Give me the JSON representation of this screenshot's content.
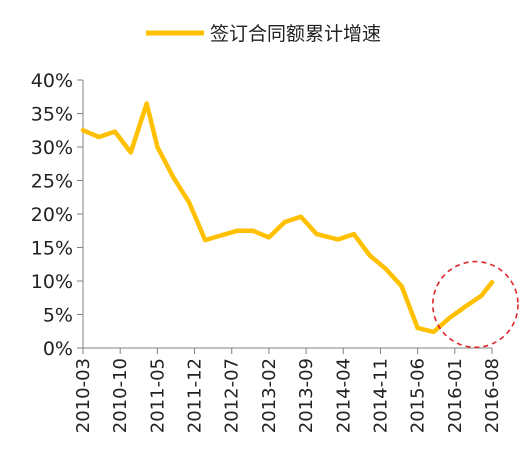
{
  "chart_data": {
    "type": "line",
    "legend": {
      "position": "top-center",
      "entries": [
        "签订合同额累计增速"
      ]
    },
    "series": [
      {
        "name": "签订合同额累计增速",
        "color": "#FFC000",
        "points": [
          {
            "x": "2010-03",
            "y": 32.5
          },
          {
            "x": "2010-06",
            "y": 31.5
          },
          {
            "x": "2010-09",
            "y": 32.3
          },
          {
            "x": "2010-12",
            "y": 29.2
          },
          {
            "x": "2011-03",
            "y": 36.5
          },
          {
            "x": "2011-05",
            "y": 30.0
          },
          {
            "x": "2011-08",
            "y": 25.5
          },
          {
            "x": "2011-11",
            "y": 21.7
          },
          {
            "x": "2012-02",
            "y": 16.1
          },
          {
            "x": "2012-05",
            "y": 16.8
          },
          {
            "x": "2012-08",
            "y": 17.5
          },
          {
            "x": "2012-11",
            "y": 17.5
          },
          {
            "x": "2013-02",
            "y": 16.5
          },
          {
            "x": "2013-05",
            "y": 18.8
          },
          {
            "x": "2013-08",
            "y": 19.6
          },
          {
            "x": "2013-11",
            "y": 17.0
          },
          {
            "x": "2014-03",
            "y": 16.2
          },
          {
            "x": "2014-06",
            "y": 17.0
          },
          {
            "x": "2014-09",
            "y": 13.8
          },
          {
            "x": "2014-12",
            "y": 11.8
          },
          {
            "x": "2015-03",
            "y": 9.2
          },
          {
            "x": "2015-06",
            "y": 3.0
          },
          {
            "x": "2015-09",
            "y": 2.4
          },
          {
            "x": "2015-12",
            "y": 4.5
          },
          {
            "x": "2016-03",
            "y": 6.2
          },
          {
            "x": "2016-06",
            "y": 7.8
          },
          {
            "x": "2016-08",
            "y": 9.8
          }
        ]
      }
    ],
    "x_ticks": [
      "2010-03",
      "2010-10",
      "2011-05",
      "2011-12",
      "2012-07",
      "2013-02",
      "2013-09",
      "2014-04",
      "2014-11",
      "2015-06",
      "2016-01",
      "2016-08"
    ],
    "y_ticks": [
      "0%",
      "5%",
      "10%",
      "15%",
      "20%",
      "25%",
      "30%",
      "35%",
      "40%"
    ],
    "y_tick_values": [
      0,
      5,
      10,
      15,
      20,
      25,
      30,
      35,
      40
    ],
    "ylim": [
      0,
      40
    ],
    "grid": false,
    "annotation": {
      "shape": "dashed-ellipse",
      "color": "#E0242B",
      "around": [
        "2016-01",
        "2016-08"
      ]
    }
  }
}
